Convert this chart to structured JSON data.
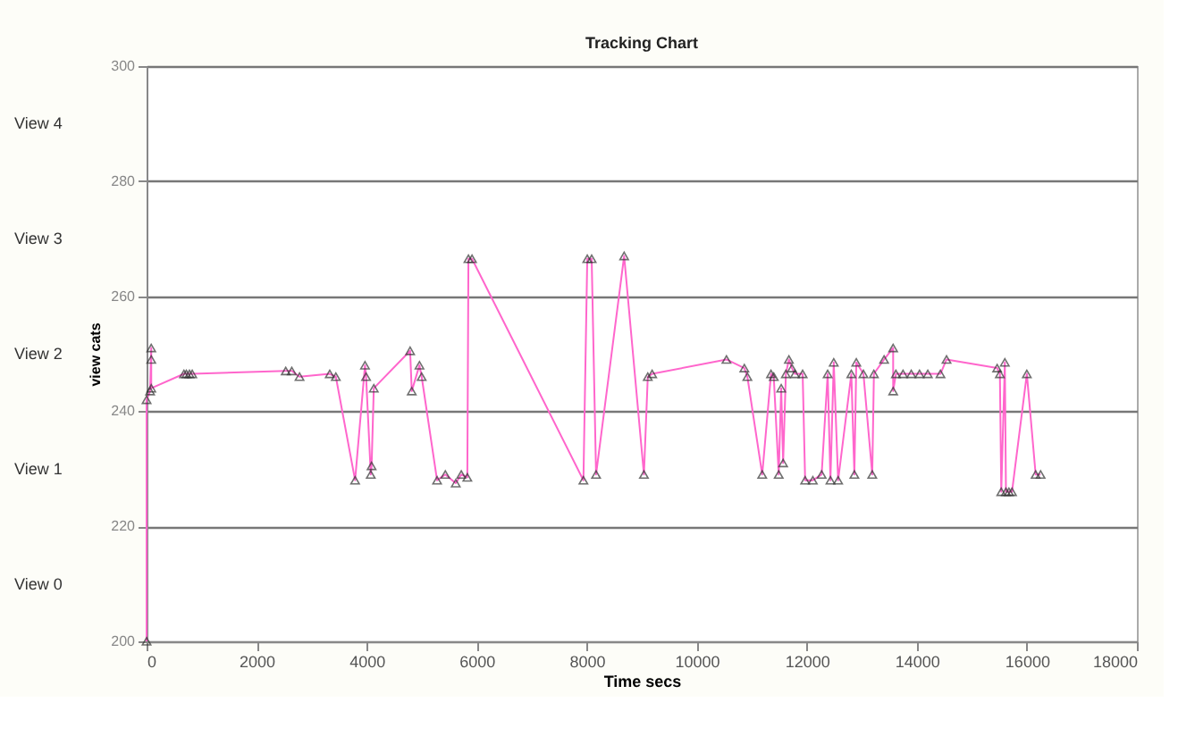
{
  "chart_data": {
    "type": "line",
    "title": "Tracking Chart",
    "xlabel": "Time secs",
    "ylabel": "view cats",
    "annotations": [
      "View 4",
      "View 3",
      "View 2",
      "View 1",
      "View 0"
    ],
    "xlim": [
      0,
      18000
    ],
    "xticks": [
      0,
      2000,
      4000,
      6000,
      8000,
      10000,
      12000,
      14000,
      16000,
      18000
    ],
    "ylim": [
      200,
      300
    ],
    "yticks": [
      200,
      220,
      240,
      260,
      280,
      300
    ],
    "grid": "y",
    "marker": "triangle",
    "line_style": "solid",
    "series": [
      {
        "color": "#ff66cc",
        "x": [
          0,
          0,
          64,
          85,
          85,
          85,
          680,
          724,
          780,
          830,
          2530,
          2640,
          2780,
          3330,
          3440,
          3790,
          3970,
          3990,
          4075,
          4090,
          4130,
          4790,
          4820,
          4960,
          5000,
          5280,
          5430,
          5620,
          5720,
          5830,
          5850,
          5915,
          7940,
          8010,
          8090,
          8170,
          8680,
          9040,
          9110,
          9190,
          10540,
          10865,
          10920,
          11190,
          11350,
          11400,
          11490,
          11535,
          11570,
          11620,
          11675,
          11730,
          11785,
          11925,
          11970,
          12110,
          12270,
          12380,
          12430,
          12490,
          12570,
          12810,
          12865,
          12900,
          13030,
          13190,
          13220,
          13405,
          13570,
          13570,
          13620,
          13750,
          13900,
          14050,
          14200,
          14430,
          14540,
          15460,
          15510,
          15535,
          15600,
          15620,
          15675,
          15730,
          16000,
          16160,
          16250
        ],
        "values": [
          200,
          242,
          243.5,
          251,
          249,
          244,
          246.5,
          246.5,
          246.5,
          246.5,
          247,
          247,
          246,
          246.5,
          246,
          228,
          248,
          246,
          229,
          230.5,
          244,
          250.5,
          243.5,
          248,
          246,
          228,
          229,
          227.5,
          229,
          228.5,
          266.5,
          266.5,
          228,
          266.5,
          266.5,
          229,
          267,
          229,
          246,
          246.5,
          249,
          247.5,
          246,
          229,
          246.5,
          246,
          229,
          244,
          231,
          246.5,
          249,
          247.5,
          246.5,
          246.5,
          228,
          228,
          229,
          246.5,
          228,
          248.5,
          228,
          246.5,
          229,
          248.5,
          246.5,
          229,
          246.5,
          249,
          251,
          243.5,
          246.5,
          246.5,
          246.5,
          246.5,
          246.5,
          246.5,
          249,
          247.5,
          246.5,
          226,
          248.5,
          226,
          226,
          226,
          246.5,
          229,
          229
        ]
      }
    ]
  }
}
